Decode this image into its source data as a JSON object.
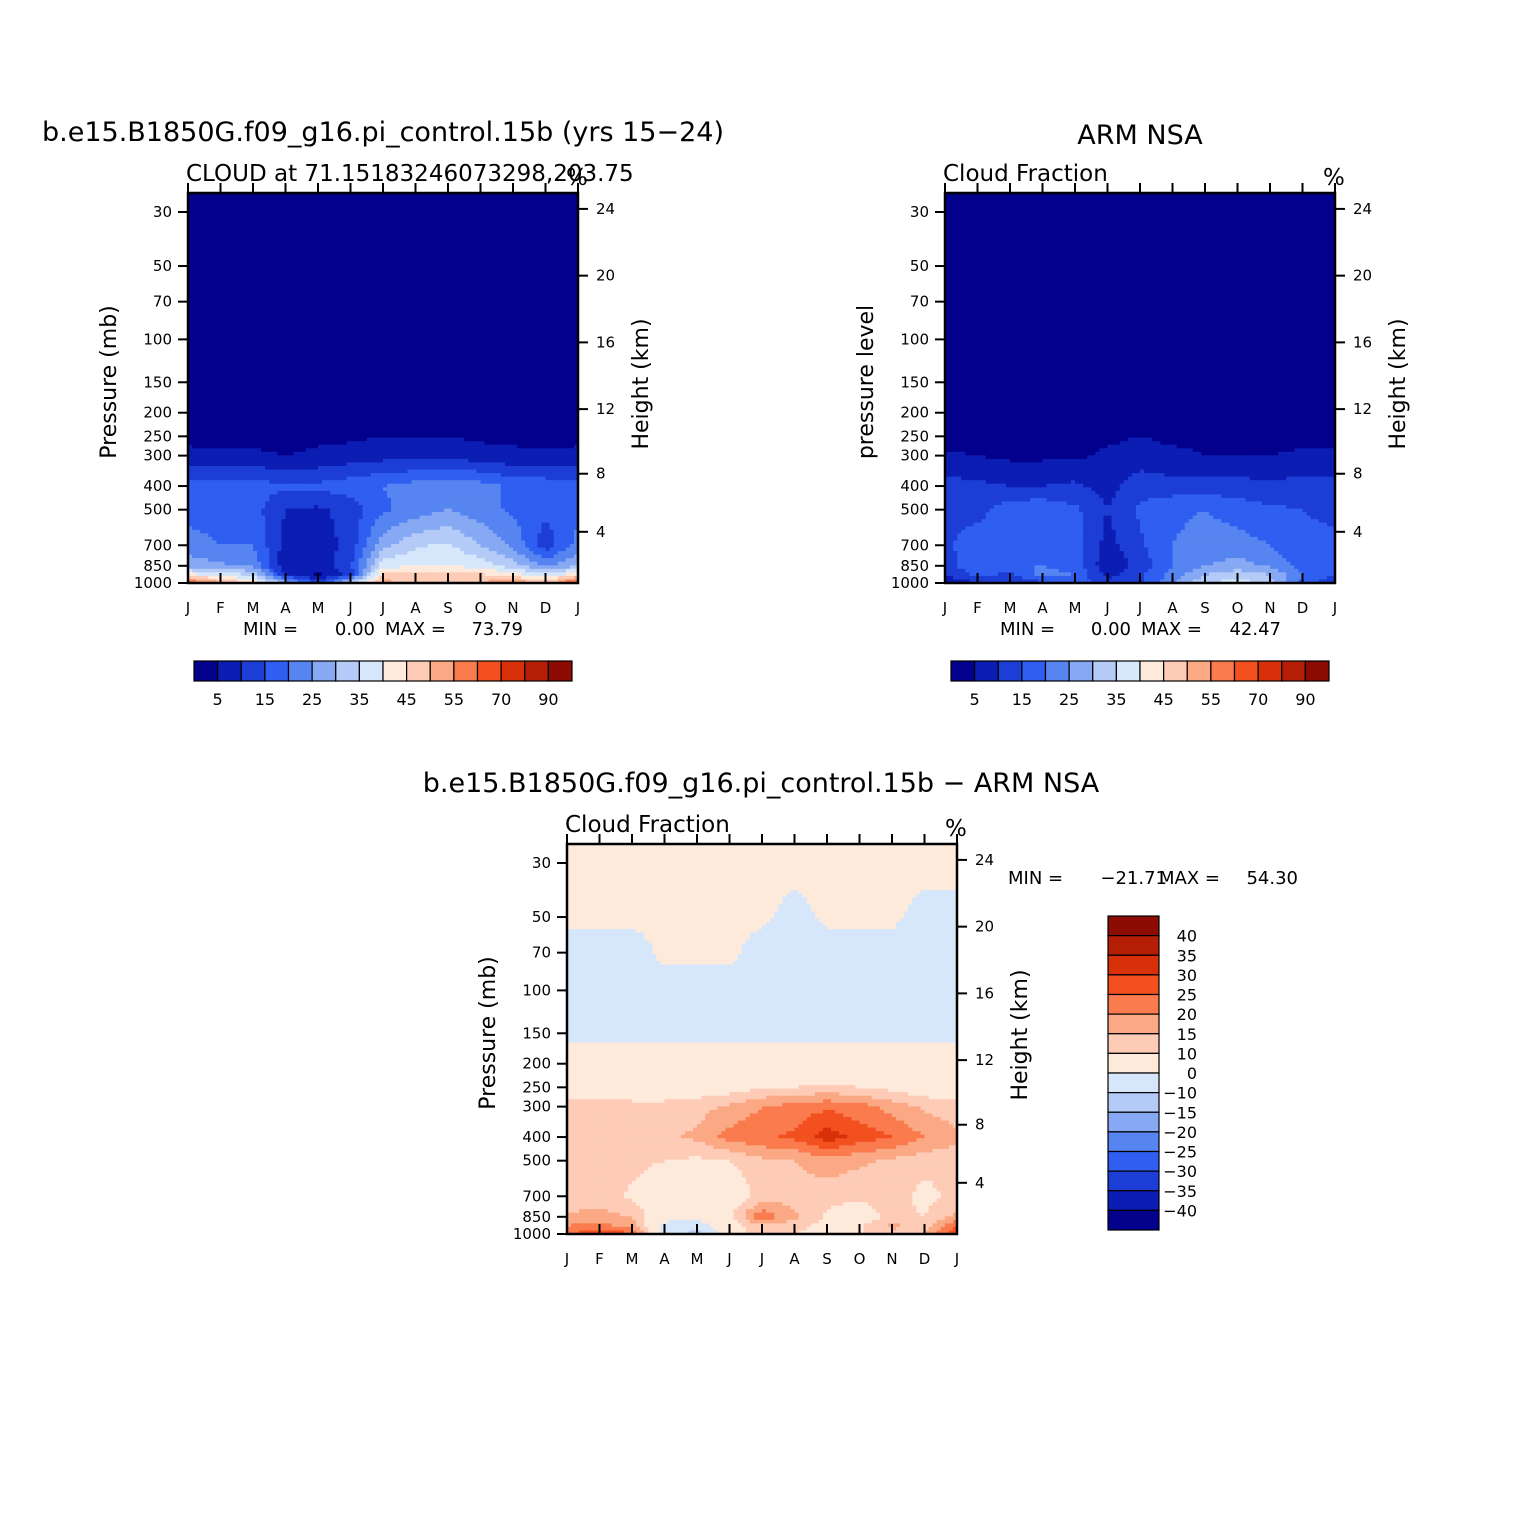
{
  "months": [
    "J",
    "F",
    "M",
    "A",
    "M",
    "J",
    "J",
    "A",
    "S",
    "O",
    "N",
    "D",
    "J"
  ],
  "pressure_levels": [
    30,
    50,
    70,
    100,
    150,
    200,
    250,
    300,
    400,
    500,
    700,
    850,
    1000
  ],
  "height_ticks": [
    4,
    8,
    12,
    16,
    20,
    24
  ],
  "chart_data": [
    {
      "type": "heatmap",
      "id": "model",
      "title": "b.e15.B1850G.f09_g16.pi_control.15b (yrs 15−24)",
      "subtitle_left": "CLOUD at 71.15183246073298,203.75",
      "subtitle_right": "%",
      "ylabel": "Pressure (mb)",
      "ylabel_right": "Height (km)",
      "min_label": "MIN =",
      "min_value": "0.00",
      "max_label": "MAX =",
      "max_value": "73.79",
      "colorbar_labels": [
        "5",
        "15",
        "25",
        "35",
        "45",
        "55",
        "70",
        "90"
      ],
      "colorbar_colors": [
        "#03008c",
        "#0b1db3",
        "#1d3ed6",
        "#2f5ef0",
        "#5685f2",
        "#87a9f4",
        "#b4cbf8",
        "#d6e7fb",
        "#feeadb",
        "#fecbb6",
        "#fba984",
        "#fa7b4e",
        "#f2501f",
        "#d83009",
        "#b41e04",
        "#8c0b03"
      ],
      "grid_cols": [
        0,
        1,
        2,
        3,
        4,
        5,
        6,
        7,
        8,
        9,
        10,
        11,
        12
      ],
      "grid_levels": [
        30,
        200,
        250,
        300,
        400,
        500,
        700,
        850,
        925,
        1000
      ],
      "grid_values": [
        [
          1,
          1,
          1,
          1,
          1,
          1,
          1,
          1,
          1,
          1,
          1,
          1,
          1
        ],
        [
          1,
          1,
          1,
          1,
          1,
          1,
          2,
          2,
          2,
          1,
          1,
          1,
          1
        ],
        [
          4,
          3,
          3,
          3,
          4,
          4,
          5,
          5,
          5,
          4,
          4,
          3,
          4
        ],
        [
          6,
          6,
          6,
          5,
          6,
          7,
          8,
          8,
          8,
          7,
          6,
          6,
          6
        ],
        [
          17,
          17,
          17,
          16,
          16,
          18,
          20,
          22,
          24,
          22,
          19,
          18,
          18
        ],
        [
          18,
          18,
          17,
          10,
          9,
          12,
          19,
          22,
          25,
          22,
          19,
          16,
          18
        ],
        [
          22,
          20,
          20,
          8,
          7,
          12,
          28,
          34,
          36,
          30,
          24,
          12,
          22
        ],
        [
          28,
          26,
          24,
          6,
          6,
          14,
          38,
          40,
          40,
          38,
          32,
          24,
          30
        ],
        [
          42,
          38,
          34,
          10,
          4,
          12,
          46,
          48,
          48,
          46,
          42,
          36,
          44
        ],
        [
          62,
          52,
          44,
          30,
          12,
          34,
          52,
          48,
          46,
          50,
          55,
          48,
          64
        ]
      ]
    },
    {
      "type": "heatmap",
      "id": "obs",
      "title": "ARM NSA",
      "subtitle_left": "Cloud Fraction",
      "subtitle_right": "%",
      "ylabel": "pressure level",
      "ylabel_right": "Height (km)",
      "min_label": "MIN =",
      "min_value": "0.00",
      "max_label": "MAX =",
      "max_value": "42.47",
      "colorbar_labels": [
        "5",
        "15",
        "25",
        "35",
        "45",
        "55",
        "70",
        "90"
      ],
      "colorbar_colors": [
        "#03008c",
        "#0b1db3",
        "#1d3ed6",
        "#2f5ef0",
        "#5685f2",
        "#87a9f4",
        "#b4cbf8",
        "#d6e7fb",
        "#feeadb",
        "#fecbb6",
        "#fba984",
        "#fa7b4e",
        "#f2501f",
        "#d83009",
        "#b41e04",
        "#8c0b03"
      ],
      "grid_cols": [
        0,
        1,
        2,
        3,
        4,
        5,
        6,
        7,
        8,
        9,
        10,
        11,
        12
      ],
      "grid_levels": [
        30,
        250,
        300,
        400,
        500,
        700,
        850,
        925,
        1000
      ],
      "grid_values": [
        [
          1,
          1,
          1,
          1,
          1,
          1,
          1,
          1,
          1,
          1,
          1,
          1,
          1
        ],
        [
          2,
          2,
          2,
          2,
          3,
          4,
          5,
          4,
          4,
          3,
          3,
          3,
          3
        ],
        [
          6,
          5,
          4,
          4,
          4,
          6,
          7,
          6,
          5,
          5,
          5,
          6,
          6
        ],
        [
          12,
          11,
          10,
          10,
          11,
          8,
          13,
          12,
          12,
          12,
          11,
          12,
          12
        ],
        [
          14,
          13,
          18,
          19,
          16,
          10,
          16,
          19,
          20,
          18,
          16,
          15,
          14
        ],
        [
          14,
          18,
          19,
          20,
          18,
          8,
          14,
          20,
          22,
          22,
          20,
          16,
          16
        ],
        [
          12,
          20,
          20,
          20,
          18,
          6,
          12,
          20,
          25,
          27,
          24,
          18,
          18
        ],
        [
          10,
          16,
          14,
          22,
          20,
          8,
          14,
          22,
          30,
          33,
          30,
          20,
          16
        ],
        [
          6,
          10,
          10,
          14,
          18,
          12,
          14,
          24,
          34,
          38,
          32,
          18,
          10
        ]
      ]
    },
    {
      "type": "heatmap",
      "id": "diff",
      "title": "b.e15.B1850G.f09_g16.pi_control.15b − ARM NSA",
      "subtitle_left": "Cloud Fraction",
      "subtitle_right": "%",
      "ylabel": "Pressure (mb)",
      "ylabel_right": "Height (km)",
      "min_label": "MIN =",
      "min_value": "−21.71",
      "max_label": "MAX =",
      "max_value": "54.30",
      "colorbar_labels": [
        "40",
        "35",
        "30",
        "25",
        "20",
        "15",
        "10",
        "0",
        "−10",
        "−15",
        "−20",
        "−25",
        "−30",
        "−35",
        "−40"
      ],
      "colorbar_colors": [
        "#8c0b03",
        "#b41e04",
        "#d83009",
        "#f2501f",
        "#fa7b4e",
        "#fba984",
        "#fecbb6",
        "#feeadb",
        "#d6e7fb",
        "#b4cbf8",
        "#87a9f4",
        "#5685f2",
        "#2f5ef0",
        "#1d3ed6",
        "#0b1db3",
        "#03008c"
      ],
      "grid_cols": [
        0,
        1,
        2,
        3,
        4,
        5,
        6,
        7,
        8,
        9,
        10,
        11,
        12
      ],
      "grid_levels": [
        30,
        50,
        70,
        100,
        150,
        200,
        250,
        300,
        400,
        500,
        700,
        850,
        925,
        1000
      ],
      "grid_values": [
        [
          1,
          1,
          1,
          1,
          1,
          1,
          1,
          1,
          1,
          1,
          1,
          1,
          1
        ],
        [
          0.5,
          0.5,
          0.5,
          0.5,
          0.5,
          0.5,
          0.5,
          -1,
          0.5,
          0.5,
          0.5,
          -1,
          -1
        ],
        [
          -1,
          -1,
          -1,
          0.5,
          0.5,
          0.5,
          -1,
          -2,
          -1,
          -1,
          -1,
          -1,
          -1
        ],
        [
          -1,
          -1,
          -1,
          -1,
          -1,
          -1,
          -1,
          -1,
          -1,
          -1,
          -1,
          -1,
          -1
        ],
        [
          -1,
          -1,
          -1,
          -1,
          -1,
          -1,
          -1,
          -1,
          -1,
          -1,
          -1,
          -1,
          -1
        ],
        [
          2,
          2,
          2,
          2,
          2,
          2,
          2,
          2,
          2,
          2,
          2,
          2,
          2
        ],
        [
          5,
          5,
          5,
          5,
          6,
          7,
          9,
          10,
          11,
          10,
          8,
          6,
          5
        ],
        [
          12,
          13,
          12,
          12,
          13,
          16,
          20,
          22,
          24,
          22,
          18,
          14,
          12
        ],
        [
          14,
          15,
          15,
          14,
          16,
          22,
          24,
          26,
          33,
          28,
          25,
          20,
          16
        ],
        [
          12,
          12,
          12,
          10,
          9,
          10,
          14,
          15,
          18,
          16,
          14,
          12,
          12
        ],
        [
          11,
          12,
          9,
          3,
          4,
          5,
          12,
          13,
          12,
          11,
          13,
          8,
          12
        ],
        [
          16,
          17,
          15,
          4,
          3,
          9,
          24,
          16,
          9,
          6,
          12,
          10,
          16
        ],
        [
          20,
          22,
          18,
          -3,
          -6,
          7,
          14,
          12,
          8,
          9,
          16,
          12,
          26
        ],
        [
          25,
          28,
          26,
          -4,
          -14,
          8,
          12,
          10,
          8,
          9,
          14,
          15,
          30
        ]
      ]
    }
  ]
}
